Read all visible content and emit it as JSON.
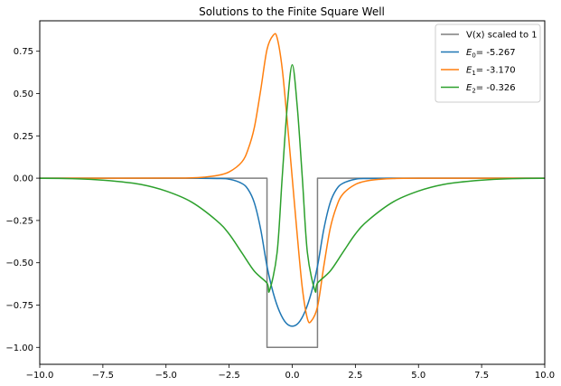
{
  "chart_data": {
    "type": "line",
    "title": "Solutions to the Finite Square Well",
    "xlabel": "",
    "ylabel": "",
    "xlim": [
      -10,
      10
    ],
    "ylim": [
      -1.1,
      0.93
    ],
    "xticks": [
      -10,
      -7.5,
      -5,
      -2.5,
      0,
      2.5,
      5,
      7.5,
      10
    ],
    "xtick_labels": [
      "−10.0",
      "−7.5",
      "−5.0",
      "−2.5",
      "0.0",
      "2.5",
      "5.0",
      "7.5",
      "10.0"
    ],
    "yticks": [
      -1,
      -0.75,
      -0.5,
      -0.25,
      0,
      0.25,
      0.5,
      0.75
    ],
    "ytick_labels": [
      "−1.00",
      "−0.75",
      "−0.50",
      "−0.25",
      "0.00",
      "0.25",
      "0.50",
      "0.75"
    ],
    "grid": false,
    "legend_position": "top-right",
    "series": [
      {
        "name": "V(x) scaled to 1",
        "color": "#7f7f7f",
        "x": [
          -10,
          -1,
          -1,
          1,
          1,
          10
        ],
        "y": [
          0,
          0,
          -1,
          -1,
          0,
          0
        ]
      },
      {
        "name": "E0= -5.267",
        "legend_letter": "E",
        "legend_sub": "0",
        "legend_value": "= -5.267",
        "color": "#1f77b4",
        "x": [
          -10,
          -5,
          -4,
          -3,
          -2.5,
          -2,
          -1.75,
          -1.5,
          -1.25,
          -1,
          -0.75,
          -0.5,
          -0.25,
          0,
          0.25,
          0.5,
          0.75,
          1,
          1.25,
          1.5,
          1.75,
          2,
          2.5,
          3,
          4,
          5,
          10
        ],
        "y": [
          0,
          0,
          -0.0003,
          -0.002,
          -0.006,
          -0.031,
          -0.066,
          -0.146,
          -0.302,
          -0.52,
          -0.68,
          -0.79,
          -0.855,
          -0.875,
          -0.855,
          -0.79,
          -0.68,
          -0.52,
          -0.302,
          -0.146,
          -0.066,
          -0.031,
          -0.006,
          -0.002,
          -0.0003,
          0,
          0
        ]
      },
      {
        "name": "E1= -3.170",
        "legend_letter": "E",
        "legend_sub": "1",
        "legend_value": "= -3.170",
        "color": "#ff7f0e",
        "x": [
          -10,
          -5,
          -4,
          -3.5,
          -3,
          -2.5,
          -2,
          -1.75,
          -1.5,
          -1.25,
          -1,
          -0.75,
          -0.6,
          -0.4,
          -0.2,
          0,
          0.2,
          0.4,
          0.6,
          0.75,
          1,
          1.25,
          1.5,
          1.75,
          2,
          2.5,
          3,
          3.5,
          4,
          5,
          10
        ],
        "y": [
          0,
          0.0003,
          0.002,
          0.006,
          0.015,
          0.037,
          0.095,
          0.17,
          0.3,
          0.52,
          0.76,
          0.845,
          0.83,
          0.65,
          0.34,
          0,
          -0.34,
          -0.65,
          -0.83,
          -0.845,
          -0.76,
          -0.52,
          -0.3,
          -0.17,
          -0.095,
          -0.037,
          -0.015,
          -0.006,
          -0.002,
          -0.0003,
          0
        ]
      },
      {
        "name": "E2= -0.326",
        "legend_letter": "E",
        "legend_sub": "2",
        "legend_value": "= -0.326",
        "color": "#2ca02c",
        "x": [
          -10,
          -9,
          -8,
          -7,
          -6,
          -5,
          -4,
          -3,
          -2.5,
          -2,
          -1.5,
          -1,
          -0.9,
          -0.6,
          -0.4,
          -0.2,
          0,
          0.2,
          0.4,
          0.6,
          0.9,
          1,
          1.5,
          2,
          2.5,
          3,
          4,
          5,
          6,
          7,
          8,
          9,
          10
        ],
        "y": [
          -0.001,
          -0.002,
          -0.007,
          -0.018,
          -0.037,
          -0.076,
          -0.14,
          -0.25,
          -0.33,
          -0.44,
          -0.55,
          -0.62,
          -0.665,
          -0.44,
          0,
          0.42,
          0.67,
          0.42,
          0,
          -0.44,
          -0.665,
          -0.62,
          -0.55,
          -0.44,
          -0.33,
          -0.25,
          -0.14,
          -0.076,
          -0.037,
          -0.018,
          -0.007,
          -0.002,
          -0.001
        ]
      }
    ]
  }
}
